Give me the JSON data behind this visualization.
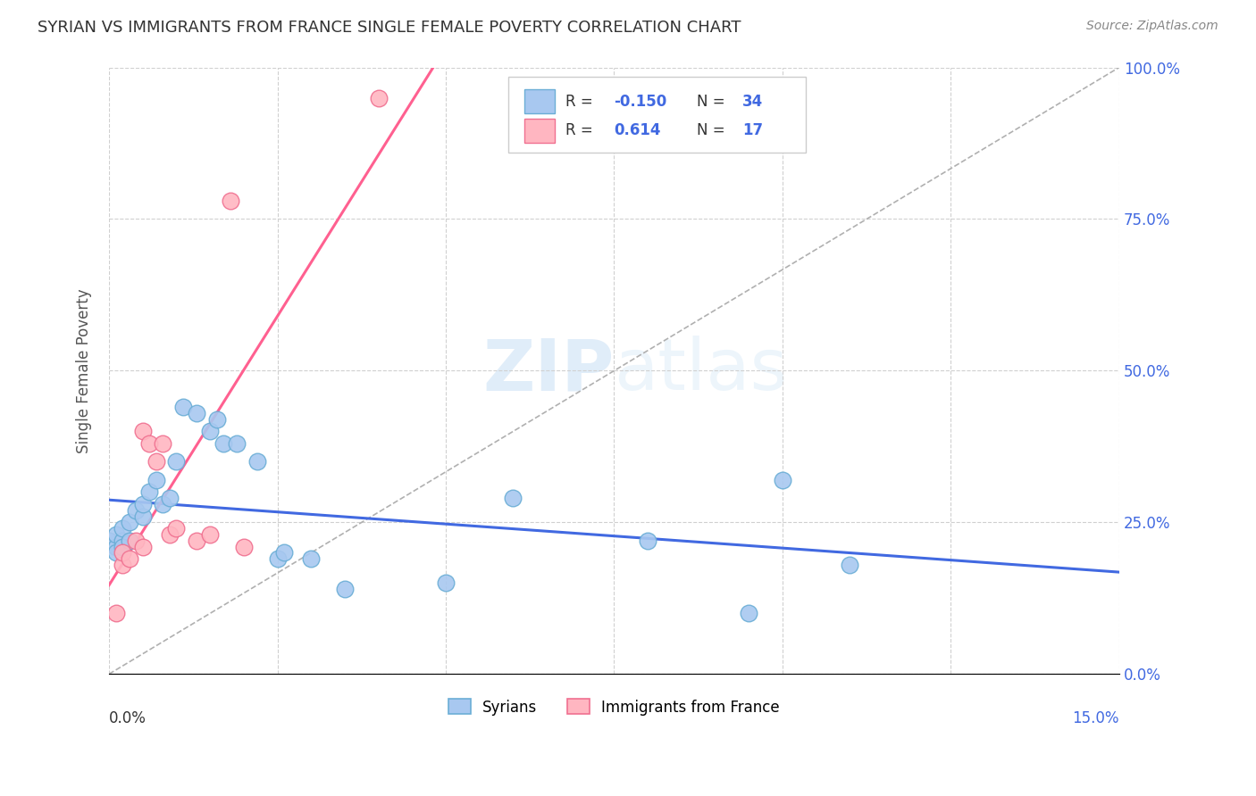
{
  "title": "SYRIAN VS IMMIGRANTS FROM FRANCE SINGLE FEMALE POVERTY CORRELATION CHART",
  "source": "Source: ZipAtlas.com",
  "ylabel": "Single Female Poverty",
  "watermark": "ZIPatlas",
  "syrians_color": "#a8c8f0",
  "syrians_edge": "#6baed6",
  "france_color": "#ffb6c1",
  "france_edge": "#f07090",
  "trendline_syrians": "#4169e1",
  "trendline_france": "#ff6090",
  "diagonal_color": "#b0b0b0",
  "background": "#ffffff",
  "grid_color": "#d0d0d0",
  "xlim": [
    0.0,
    0.15
  ],
  "ylim": [
    0.0,
    1.0
  ],
  "syrians_x": [
    0.0,
    0.001,
    0.001,
    0.001,
    0.002,
    0.002,
    0.002,
    0.003,
    0.003,
    0.004,
    0.005,
    0.005,
    0.006,
    0.007,
    0.008,
    0.009,
    0.01,
    0.011,
    0.013,
    0.015,
    0.016,
    0.017,
    0.019,
    0.022,
    0.025,
    0.026,
    0.03,
    0.035,
    0.05,
    0.06,
    0.08,
    0.095,
    0.1,
    0.11
  ],
  "syrians_y": [
    0.22,
    0.21,
    0.23,
    0.2,
    0.22,
    0.24,
    0.21,
    0.25,
    0.22,
    0.27,
    0.26,
    0.28,
    0.3,
    0.32,
    0.28,
    0.29,
    0.35,
    0.44,
    0.43,
    0.4,
    0.42,
    0.38,
    0.38,
    0.35,
    0.19,
    0.2,
    0.19,
    0.14,
    0.15,
    0.29,
    0.22,
    0.1,
    0.32,
    0.18
  ],
  "france_x": [
    0.001,
    0.002,
    0.002,
    0.003,
    0.004,
    0.005,
    0.005,
    0.006,
    0.007,
    0.008,
    0.009,
    0.01,
    0.013,
    0.015,
    0.018,
    0.02,
    0.04
  ],
  "france_y": [
    0.1,
    0.18,
    0.2,
    0.19,
    0.22,
    0.21,
    0.4,
    0.38,
    0.35,
    0.38,
    0.23,
    0.24,
    0.22,
    0.23,
    0.78,
    0.21,
    0.95
  ],
  "r_syrians": "-0.150",
  "n_syrians": "34",
  "r_france": "0.614",
  "n_france": "17"
}
